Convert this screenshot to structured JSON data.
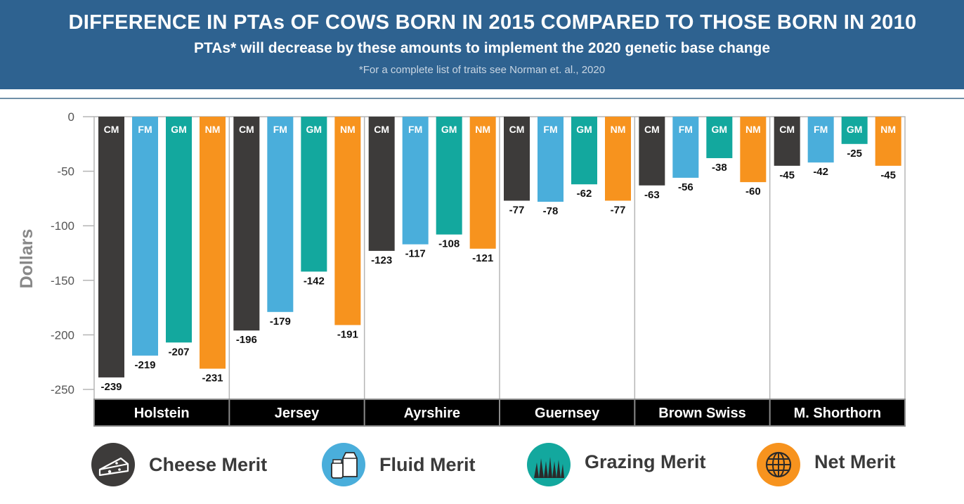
{
  "header": {
    "title": "DIFFERENCE IN PTAs OF COWS BORN IN 2015 COMPARED TO THOSE BORN IN 2010",
    "subtitle": "PTAs* will decrease by these amounts to implement the 2020 genetic base change",
    "note": "*For a complete list of traits see Norman et. al., 2020"
  },
  "legend": [
    {
      "label": "Cheese Merit",
      "color": "#3d3b3a",
      "icon": "cheese-icon"
    },
    {
      "label": "Fluid Merit",
      "color": "#4aaedb",
      "icon": "milk-carton-icon"
    },
    {
      "label": "Grazing Merit",
      "color": "#13a89e",
      "icon": "grass-icon"
    },
    {
      "label": "Net Merit",
      "color": "#f7931e",
      "icon": "globe-icon"
    }
  ],
  "chart_data": {
    "type": "bar",
    "title": "DIFFERENCE IN PTAs OF COWS BORN IN 2015 COMPARED TO THOSE BORN IN 2010",
    "ylabel": "Dollars",
    "xlabel": "",
    "ylim": [
      -250,
      0
    ],
    "yticks": [
      0,
      -50,
      -100,
      -150,
      -200,
      -250
    ],
    "categories": [
      "Holstein",
      "Jersey",
      "Ayrshire",
      "Guernsey",
      "Brown Swiss",
      "M. Shorthorn"
    ],
    "series": [
      {
        "name": "Cheese Merit",
        "abbr": "CM",
        "color": "#3d3b3a",
        "values": [
          -239,
          -196,
          -123,
          -77,
          -63,
          -45
        ]
      },
      {
        "name": "Fluid Merit",
        "abbr": "FM",
        "color": "#4aaedb",
        "values": [
          -219,
          -179,
          -117,
          -78,
          -56,
          -42
        ]
      },
      {
        "name": "Grazing Merit",
        "abbr": "GM",
        "color": "#13a89e",
        "values": [
          -207,
          -142,
          -108,
          -62,
          -38,
          -25
        ]
      },
      {
        "name": "Net Merit",
        "abbr": "NM",
        "color": "#f7931e",
        "values": [
          -231,
          -191,
          -121,
          -77,
          -60,
          -45
        ]
      }
    ],
    "grid": false,
    "legend": "bottom"
  }
}
